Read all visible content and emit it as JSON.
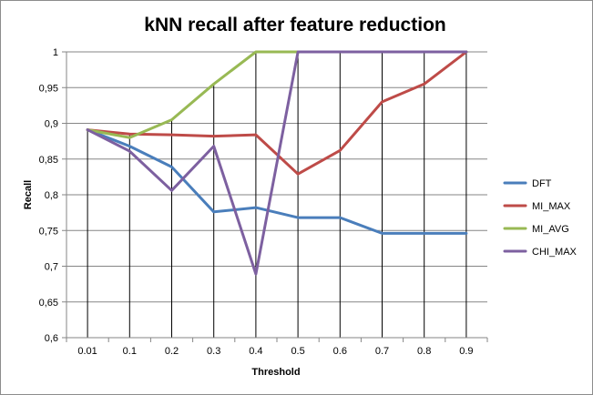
{
  "chart_data": {
    "type": "line",
    "title": "kNN recall after feature reduction",
    "xlabel": "Threshold",
    "ylabel": "Recall",
    "categories": [
      "0.01",
      "0.1",
      "0.2",
      "0.3",
      "0.4",
      "0.5",
      "0.6",
      "0.7",
      "0.8",
      "0.9"
    ],
    "ylim": [
      0.6,
      1
    ],
    "yticks": [
      0.6,
      0.65,
      0.7,
      0.75,
      0.8,
      0.85,
      0.9,
      0.95,
      1
    ],
    "ytick_labels": [
      "0,6",
      "0,65",
      "0,7",
      "0,75",
      "0,8",
      "0,85",
      "0,9",
      "0,95",
      "1"
    ],
    "grid": "horizontal major gridlines",
    "legend_position": "right",
    "series": [
      {
        "name": "DFT",
        "color": "#4a7ebb",
        "values": [
          0.891,
          0.868,
          0.839,
          0.776,
          0.782,
          0.768,
          0.768,
          0.746,
          0.746,
          0.746
        ]
      },
      {
        "name": "MI_MAX",
        "color": "#be4b48",
        "values": [
          0.891,
          0.885,
          0.884,
          0.882,
          0.884,
          0.829,
          0.862,
          0.93,
          0.955,
          1.0
        ]
      },
      {
        "name": "MI_AVG",
        "color": "#98b954",
        "values": [
          0.891,
          0.88,
          0.905,
          0.955,
          1.0,
          1.0,
          1.0,
          1.0,
          1.0,
          1.0
        ]
      },
      {
        "name": "CHI_MAX",
        "color": "#7d60a0",
        "values": [
          0.891,
          0.861,
          0.806,
          0.868,
          0.689,
          1.0,
          1.0,
          1.0,
          1.0,
          1.0
        ]
      }
    ]
  }
}
